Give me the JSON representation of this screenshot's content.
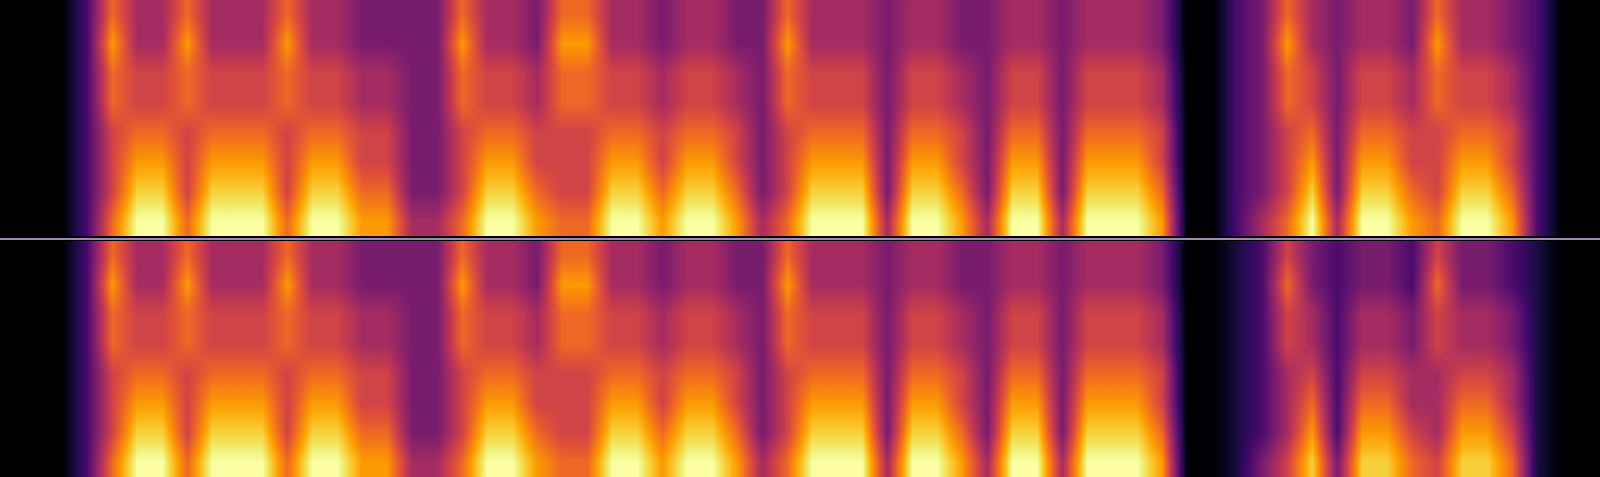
{
  "chart_data": {
    "type": "heatmap",
    "tick_labels": false,
    "panels": [
      {
        "cells": [
          [
            0,
            0,
            0,
            2,
            6,
            4,
            4,
            6,
            4,
            4,
            4,
            6,
            4,
            4,
            3,
            3,
            3,
            3,
            6,
            4,
            4,
            3,
            6,
            6,
            4,
            4,
            3,
            4,
            4,
            3,
            3,
            6,
            4,
            4,
            4,
            3,
            4,
            4,
            3,
            3,
            4,
            4,
            3,
            4,
            4,
            4,
            3,
            0,
            0,
            2,
            3,
            6,
            4,
            3,
            4,
            4,
            3,
            6,
            4,
            4,
            3,
            2,
            0,
            0
          ],
          [
            0,
            0,
            0,
            2,
            7,
            4,
            4,
            7,
            4,
            4,
            4,
            7,
            4,
            4,
            3,
            3,
            3,
            3,
            7,
            4,
            4,
            3,
            7,
            7,
            4,
            4,
            3,
            4,
            4,
            3,
            3,
            7,
            4,
            4,
            4,
            3,
            4,
            4,
            3,
            3,
            4,
            4,
            3,
            4,
            4,
            4,
            3,
            0,
            0,
            2,
            3,
            7,
            4,
            3,
            4,
            4,
            3,
            7,
            4,
            4,
            3,
            2,
            0,
            0
          ],
          [
            0,
            0,
            0,
            2,
            6,
            5,
            5,
            6,
            5,
            5,
            5,
            6,
            5,
            5,
            4,
            4,
            3,
            3,
            6,
            5,
            5,
            4,
            6,
            6,
            5,
            5,
            4,
            5,
            5,
            4,
            3,
            6,
            5,
            5,
            5,
            3,
            5,
            5,
            4,
            3,
            5,
            5,
            3,
            5,
            5,
            5,
            4,
            0,
            0,
            2,
            3,
            6,
            5,
            3,
            5,
            5,
            4,
            6,
            5,
            5,
            4,
            2,
            0,
            0
          ],
          [
            0,
            0,
            0,
            2,
            6,
            5,
            5,
            6,
            5,
            5,
            5,
            6,
            5,
            5,
            4,
            4,
            3,
            3,
            6,
            5,
            5,
            4,
            6,
            6,
            5,
            5,
            4,
            5,
            5,
            4,
            3,
            6,
            5,
            5,
            5,
            3,
            5,
            5,
            4,
            3,
            5,
            5,
            3,
            5,
            5,
            5,
            4,
            0,
            0,
            2,
            3,
            6,
            5,
            3,
            5,
            5,
            4,
            6,
            5,
            5,
            4,
            2,
            0,
            0
          ],
          [
            0,
            0,
            0,
            2,
            5,
            6,
            6,
            5,
            6,
            6,
            6,
            5,
            6,
            6,
            5,
            5,
            3,
            3,
            5,
            6,
            6,
            5,
            5,
            5,
            6,
            6,
            5,
            6,
            6,
            5,
            3,
            5,
            6,
            6,
            6,
            3,
            6,
            6,
            5,
            3,
            6,
            6,
            3,
            6,
            6,
            6,
            5,
            0,
            0,
            2,
            3,
            5,
            6,
            3,
            6,
            6,
            5,
            5,
            6,
            6,
            5,
            2,
            0,
            0
          ],
          [
            0,
            0,
            0,
            2,
            5,
            7,
            7,
            5,
            7,
            7,
            7,
            5,
            7,
            7,
            5,
            5,
            3,
            3,
            5,
            7,
            7,
            5,
            5,
            5,
            7,
            7,
            5,
            7,
            7,
            5,
            3,
            5,
            7,
            7,
            7,
            3,
            7,
            7,
            5,
            3,
            7,
            7,
            3,
            7,
            7,
            7,
            5,
            0,
            0,
            2,
            3,
            5,
            7,
            3,
            7,
            7,
            5,
            5,
            7,
            7,
            5,
            2,
            0,
            0
          ],
          [
            0,
            0,
            0,
            2,
            5,
            8,
            8,
            5,
            8,
            8,
            8,
            5,
            8,
            8,
            6,
            6,
            3,
            3,
            5,
            8,
            8,
            6,
            5,
            5,
            8,
            8,
            6,
            8,
            8,
            6,
            3,
            5,
            8,
            8,
            8,
            3,
            8,
            8,
            6,
            3,
            8,
            8,
            3,
            8,
            8,
            8,
            6,
            0,
            0,
            2,
            3,
            5,
            8,
            3,
            8,
            8,
            6,
            5,
            8,
            8,
            6,
            2,
            0,
            0
          ],
          [
            0,
            0,
            0,
            2,
            6,
            9,
            9,
            6,
            9,
            9,
            9,
            6,
            9,
            9,
            7,
            7,
            4,
            4,
            6,
            9,
            9,
            7,
            6,
            6,
            9,
            9,
            7,
            9,
            9,
            7,
            4,
            6,
            9,
            9,
            9,
            4,
            9,
            9,
            7,
            4,
            9,
            9,
            4,
            9,
            9,
            9,
            7,
            0,
            0,
            2,
            4,
            6,
            9,
            4,
            9,
            9,
            7,
            6,
            9,
            9,
            7,
            2,
            0,
            0
          ]
        ]
      },
      {
        "cells": [
          [
            0,
            0,
            0,
            2,
            6,
            4,
            4,
            6,
            4,
            4,
            4,
            6,
            4,
            4,
            3,
            3,
            3,
            3,
            6,
            4,
            4,
            3,
            6,
            6,
            4,
            4,
            3,
            4,
            4,
            3,
            3,
            6,
            4,
            4,
            4,
            3,
            4,
            4,
            3,
            3,
            4,
            4,
            3,
            4,
            4,
            4,
            3,
            0,
            0,
            1,
            2,
            5,
            3,
            2,
            3,
            3,
            2,
            5,
            3,
            3,
            2,
            1,
            0,
            0
          ],
          [
            0,
            0,
            0,
            2,
            7,
            4,
            4,
            7,
            4,
            4,
            4,
            7,
            4,
            4,
            3,
            3,
            3,
            3,
            7,
            4,
            4,
            3,
            7,
            7,
            4,
            4,
            3,
            4,
            4,
            3,
            3,
            7,
            4,
            4,
            4,
            3,
            4,
            4,
            3,
            3,
            4,
            4,
            3,
            4,
            4,
            4,
            3,
            0,
            0,
            1,
            2,
            6,
            3,
            2,
            3,
            3,
            2,
            6,
            3,
            3,
            2,
            1,
            0,
            0
          ],
          [
            0,
            0,
            0,
            2,
            6,
            5,
            5,
            6,
            5,
            5,
            5,
            6,
            5,
            5,
            4,
            4,
            3,
            3,
            6,
            5,
            5,
            4,
            6,
            6,
            5,
            5,
            4,
            5,
            5,
            4,
            3,
            6,
            5,
            5,
            5,
            3,
            5,
            5,
            4,
            3,
            5,
            5,
            3,
            5,
            5,
            5,
            4,
            0,
            0,
            1,
            2,
            5,
            4,
            2,
            4,
            4,
            3,
            5,
            4,
            4,
            3,
            1,
            0,
            0
          ],
          [
            0,
            0,
            0,
            2,
            6,
            5,
            5,
            6,
            5,
            5,
            5,
            6,
            5,
            5,
            4,
            4,
            3,
            3,
            6,
            5,
            5,
            4,
            6,
            6,
            5,
            5,
            4,
            5,
            5,
            4,
            3,
            6,
            5,
            5,
            5,
            3,
            5,
            5,
            4,
            3,
            5,
            5,
            3,
            5,
            5,
            5,
            4,
            0,
            0,
            1,
            2,
            5,
            4,
            2,
            4,
            4,
            3,
            5,
            4,
            4,
            3,
            1,
            0,
            0
          ],
          [
            0,
            0,
            0,
            2,
            5,
            6,
            6,
            5,
            6,
            6,
            6,
            5,
            6,
            6,
            5,
            5,
            3,
            3,
            5,
            6,
            6,
            5,
            5,
            5,
            6,
            6,
            5,
            6,
            6,
            5,
            3,
            5,
            6,
            6,
            6,
            3,
            6,
            6,
            5,
            3,
            6,
            6,
            3,
            6,
            6,
            6,
            5,
            0,
            0,
            1,
            2,
            4,
            5,
            2,
            5,
            5,
            4,
            4,
            5,
            5,
            4,
            1,
            0,
            0
          ],
          [
            0,
            0,
            0,
            2,
            5,
            7,
            7,
            5,
            7,
            7,
            7,
            5,
            7,
            7,
            5,
            5,
            3,
            3,
            5,
            7,
            7,
            5,
            5,
            5,
            7,
            7,
            5,
            7,
            7,
            5,
            3,
            5,
            7,
            7,
            7,
            3,
            7,
            7,
            5,
            3,
            7,
            7,
            3,
            7,
            7,
            7,
            5,
            0,
            0,
            1,
            2,
            4,
            6,
            2,
            6,
            6,
            4,
            4,
            6,
            6,
            4,
            1,
            0,
            0
          ],
          [
            0,
            0,
            0,
            2,
            5,
            8,
            8,
            5,
            8,
            8,
            8,
            5,
            8,
            8,
            6,
            6,
            3,
            3,
            5,
            8,
            8,
            6,
            5,
            5,
            8,
            8,
            6,
            8,
            8,
            6,
            3,
            5,
            8,
            8,
            8,
            3,
            8,
            8,
            6,
            3,
            8,
            8,
            3,
            8,
            8,
            8,
            6,
            0,
            0,
            1,
            2,
            4,
            7,
            2,
            7,
            7,
            5,
            4,
            7,
            7,
            5,
            1,
            0,
            0
          ],
          [
            0,
            0,
            0,
            2,
            6,
            9,
            9,
            6,
            9,
            9,
            9,
            6,
            9,
            9,
            7,
            7,
            4,
            4,
            6,
            9,
            9,
            7,
            6,
            6,
            9,
            9,
            7,
            9,
            9,
            7,
            4,
            6,
            9,
            9,
            9,
            4,
            9,
            9,
            7,
            4,
            9,
            9,
            4,
            9,
            9,
            9,
            7,
            0,
            0,
            1,
            3,
            5,
            8,
            3,
            8,
            8,
            6,
            5,
            8,
            8,
            6,
            1,
            0,
            0
          ]
        ]
      }
    ]
  }
}
